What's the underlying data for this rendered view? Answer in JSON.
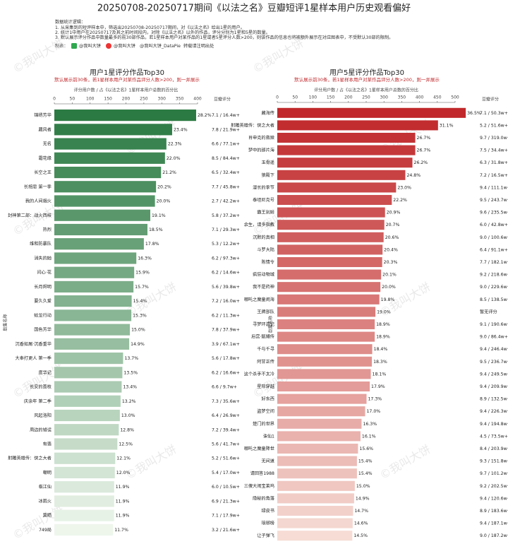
{
  "header": {
    "title": "20250708-20250717期间《以法之名》豆瓣短评1星样本用户历史观看偏好",
    "notes_title": "数据统计逻辑：",
    "notes": [
      "1. 从采集到的短评样本中，筛选出20250708-20250717期间，对《以法之名》给出1星的用户。",
      "2. 统计1中用户在20250717及其之前时间段内，对除《以法之名》以外的作品，评分分别为1星和5星的数量。",
      "3. 默认展示评分作品中数量最多的前30部作品，若1星样本用户对某作品的1星或者5星评分人数>200，则该作品的信息也将被额外展示在对应图表中，不受默认30部的限制。"
    ],
    "credit_prefix": "制表：",
    "credit_a": "@我叫大饼",
    "credit_b": "@我叫大饼_DataPie",
    "credit_note": "转载请注明出处",
    "watermark": "©我叫大饼"
  },
  "chart_data": [
    {
      "type": "barh",
      "title": "用户1星评分作品Top30",
      "subtitle": "默认展示前30条，若1星样本用户对某作品评分人数>200，则一并展示",
      "x_label": "评分用户数 / 占《以法之名》1星样本用户总数的百分比",
      "y_label": "剧集名称",
      "score_header": "豆瓣评分",
      "colors": [
        "#2b7a43",
        "#eef6ec"
      ],
      "xlim": [
        0,
        405
      ],
      "xticks": [
        0,
        50,
        100,
        150,
        200,
        250,
        300,
        350,
        400
      ],
      "categories": [
        "锦绣芳华",
        "藏风者",
        "无名",
        "霜花缘",
        "长空之王",
        "长相思 第一季",
        "我的人间烟火",
        "封神第二部：战火西岐",
        "热烈",
        "维和防暴队",
        "消失的她",
        "问心·花",
        "长月烬明",
        "要久久爱",
        "蛟龙行动",
        "国色芳华",
        "沉香如屑·沉香重华",
        "大奉打更人 第一季",
        "度华记",
        "长安的荔枝",
        "庆余年 第二季",
        "风起洛阳",
        "周边的错误",
        "有翡",
        "射雕英雄传：侠之大者",
        "嘲明",
        "临江仙",
        "冰雨火",
        "莫晒",
        "749局"
      ],
      "values": [
        396,
        329,
        313,
        309,
        298,
        284,
        281,
        268,
        260,
        250,
        229,
        223,
        221,
        216,
        215,
        211,
        209,
        192,
        190,
        188,
        185,
        183,
        180,
        176,
        170,
        169,
        167,
        167,
        167,
        164
      ],
      "percent_labels": [
        "28.2%",
        "23.4%",
        "22.3%",
        "22.0%",
        "21.2%",
        "20.2%",
        "20.0%",
        "19.1%",
        "18.5%",
        "17.8%",
        "16.3%",
        "15.9%",
        "15.7%",
        "15.4%",
        "15.3%",
        "15.0%",
        "14.9%",
        "13.7%",
        "13.5%",
        "13.4%",
        "13.2%",
        "13.0%",
        "12.8%",
        "12.5%",
        "12.1%",
        "12.0%",
        "11.9%",
        "11.9%",
        "11.9%",
        "11.7%"
      ],
      "scores": [
        "7.1 / 16.4w+",
        "7.8 / 21.9w+",
        "6.6 / 77.1w+",
        "8.5 / 84.4w+",
        "6.5 / 32.4w+",
        "7.7 / 45.8w+",
        "2.7 / 42.2w+",
        "5.8 / 37.2w+",
        "7.1 / 29.3w+",
        "5.3 / 12.2w+",
        "6.2 / 97.3w+",
        "6.2 / 14.6w+",
        "5.6 / 39.8w+",
        "7.2 / 16.0w+",
        "6.2 / 11.3w+",
        "7.8 / 37.9w+",
        "3.9 / 67.1w+",
        "5.6 / 17.8w+",
        "6.2 / 16.6w+",
        "6.6 / 9.7w+",
        "7.3 / 35.6w+",
        "6.4 / 26.9w+",
        "7.2 / 39.4w+",
        "5.6 / 41.7w+",
        "5.2 / 51.6w+",
        "5.4 / 17.0w+",
        "6.0 / 10.5w+",
        "6.9 / 21.3w+",
        "7.1 / 17.9w+",
        "3.2 / 21.6w+"
      ]
    },
    {
      "type": "barh",
      "title": "用户5星评分作品Top30",
      "subtitle": "默认展示前30条，若1星样本用户对某作品评分人数>200，则一并展示",
      "x_label": "评分用户数 / 占《以法之名》1星样本用户总数的百分比",
      "y_label": "剧集名称",
      "score_header": "豆瓣评分",
      "colors": [
        "#c0282b",
        "#f6dcd5"
      ],
      "xlim": [
        0,
        510
      ],
      "xticks": [
        0,
        50,
        100,
        150,
        200,
        250,
        300,
        350,
        400,
        450,
        500
      ],
      "categories": [
        "藏海传",
        "射雕英雄传：侠之大者",
        "肖申克的救赎",
        "梦中的那片海",
        "玉骨遥",
        "狼殿下",
        "漫长的季节",
        "泰坦尼克号",
        "霸王别姬",
        "余生，请多指教",
        "沉默的真相",
        "斗罗大陆",
        "陈情令",
        "疯狂动物城",
        "我不是药神",
        "哪吒之魔童闹海",
        "王牌部队",
        "寻梦环游记",
        "后宫·甄嬛传",
        "千与千寻",
        "阿甘正传",
        "这个杀手不太冷",
        "星际穿越",
        "好东西",
        "盗梦空间",
        "楚门的世界",
        "诛仙1",
        "哪吒之魔童降世",
        "无间道",
        "请回答1988",
        "三傻大闹宝莱坞",
        "隐秘的角落",
        "绿皮书",
        "琅琊榜",
        "让子弹飞"
      ],
      "values": [
        530,
        452,
        388,
        388,
        380,
        360,
        334,
        322,
        303,
        301,
        299,
        296,
        295,
        292,
        290,
        287,
        276,
        274,
        274,
        267,
        266,
        263,
        260,
        251,
        247,
        237,
        234,
        227,
        224,
        224,
        218,
        216,
        213,
        212,
        211
      ],
      "percent_labels": [
        "36.5%",
        "31.1%",
        "26.7%",
        "26.7%",
        "26.2%",
        "24.8%",
        "23.0%",
        "22.2%",
        "20.9%",
        "20.7%",
        "20.6%",
        "20.4%",
        "20.3%",
        "20.1%",
        "20.0%",
        "19.8%",
        "19.0%",
        "18.9%",
        "18.9%",
        "18.4%",
        "18.3%",
        "18.1%",
        "17.9%",
        "17.3%",
        "17.0%",
        "16.3%",
        "16.1%",
        "15.6%",
        "15.4%",
        "15.4%",
        "15.0%",
        "14.9%",
        "14.7%",
        "14.6%",
        "14.5%"
      ],
      "scores": [
        "7.1 / 50.3w+",
        "5.2 / 51.6w+",
        "9.7 / 319.0w+",
        "7.5 / 34.4w+",
        "6.3 / 31.8w+",
        "7.2 / 16.5w+",
        "9.4 / 111.1w+",
        "9.5 / 243.7w+",
        "9.6 / 235.5w+",
        "6.0 / 42.8w+",
        "9.0 / 100.6w+",
        "6.4 / 91.1w+",
        "7.7 / 182.1w+",
        "9.2 / 218.6w+",
        "9.0 / 229.6w+",
        "8.5 / 138.5w+",
        "暂无评分",
        "9.1 / 190.6w+",
        "9.0 / 86.4w+",
        "9.4 / 246.4w+",
        "9.5 / 236.7w+",
        "9.4 / 249.5w+",
        "9.4 / 209.9w+",
        "8.9 / 132.5w+",
        "9.4 / 226.3w+",
        "9.4 / 194.8w+",
        "4.5 / 73.5w+",
        "8.4 / 203.9w+",
        "9.3 / 151.8w+",
        "9.7 / 101.2w+",
        "9.2 / 202.5w+",
        "9.4 / 120.6w+",
        "8.9 / 183.6w+",
        "9.4 / 187.1w+",
        "9.0 / 187.2w+"
      ]
    }
  ]
}
